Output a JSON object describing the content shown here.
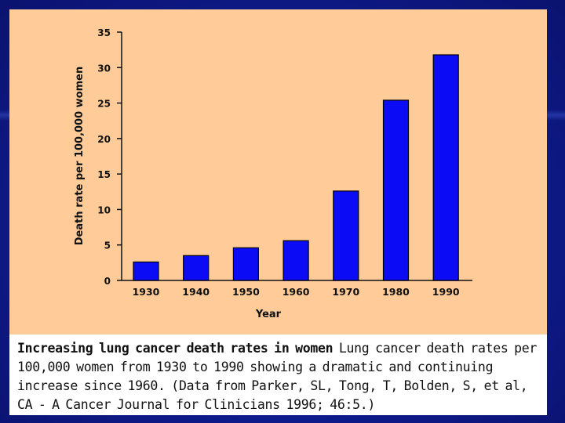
{
  "chart_data": {
    "type": "bar",
    "categories": [
      "1930",
      "1940",
      "1950",
      "1960",
      "1970",
      "1980",
      "1990"
    ],
    "values": [
      2.6,
      3.5,
      4.6,
      5.6,
      12.6,
      25.4,
      31.8
    ],
    "xlabel": "Year",
    "ylabel": "Death rate per 100,000 women",
    "ylim": [
      0,
      35
    ],
    "yticks": [
      0,
      5,
      10,
      15,
      20,
      25,
      30,
      35
    ],
    "bar_color": "#0b0bf5",
    "grid": false
  },
  "caption": {
    "lead": "Increasing lung cancer death rates in women",
    "body": "Lung cancer death rates per 100,000 women from 1930 to 1990 showing a dramatic and continuing increase since 1960. (Data from Parker, SL, Tong, T, Bolden, S, et al, CA - A Cancer Journal for Clinicians 1996; 46:5.)"
  },
  "colors": {
    "slide_background": "#0f1a8c",
    "chart_panel": "#ffcc99",
    "caption_panel": "#ffffff"
  }
}
